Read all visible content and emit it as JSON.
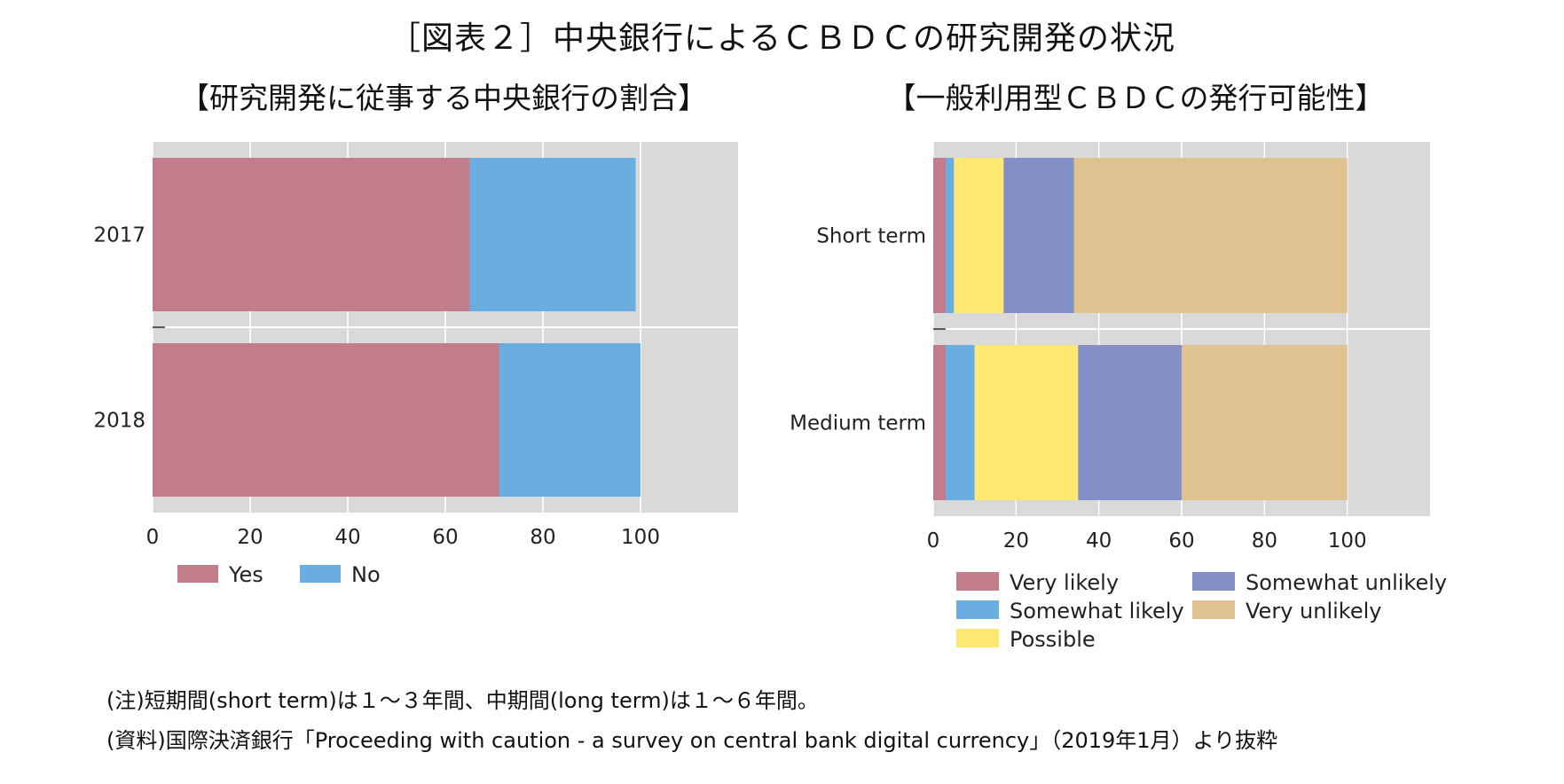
{
  "title": "［図表２］中央銀行によるＣＢＤＣの研究開発の状況",
  "chart_data": [
    {
      "type": "bar",
      "orientation": "horizontal",
      "stacked": true,
      "subtitle": "【研究開発に従事する中央銀行の割合】",
      "categories": [
        "2017",
        "2018"
      ],
      "series": [
        {
          "name": "Yes",
          "color": "#c17d8c",
          "values": [
            65,
            71
          ]
        },
        {
          "name": "No",
          "color": "#6aade0",
          "values": [
            34,
            29
          ]
        }
      ],
      "xlim": [
        0,
        120
      ],
      "xticks": [
        0,
        20,
        40,
        60,
        80,
        100
      ],
      "grid": true,
      "legend_position": "bottom"
    },
    {
      "type": "bar",
      "orientation": "horizontal",
      "stacked": true,
      "subtitle": "【一般利用型ＣＢＤＣの発行可能性】",
      "categories": [
        "Short term",
        "Medium term"
      ],
      "series": [
        {
          "name": "Very likely",
          "color": "#c17d8c",
          "values": [
            3,
            3
          ]
        },
        {
          "name": "Somewhat likely",
          "color": "#6aade0",
          "values": [
            2,
            7
          ]
        },
        {
          "name": "Possible",
          "color": "#fde972",
          "values": [
            12,
            25
          ]
        },
        {
          "name": "Somewhat unlikely",
          "color": "#838fc6",
          "values": [
            17,
            25
          ]
        },
        {
          "name": "Very unlikely",
          "color": "#e0c291",
          "values": [
            66,
            40
          ]
        }
      ],
      "xlim": [
        0,
        120
      ],
      "xticks": [
        0,
        20,
        40,
        60,
        80,
        100
      ],
      "grid": true,
      "legend_position": "bottom"
    }
  ],
  "notes": [
    "(注)短期間(short term)は１～３年間、中期間(long term)は１～６年間。",
    "(資料)国際決済銀行「Proceeding with caution - a survey on central bank digital currency」（2019年1月）より抜粋"
  ],
  "colors": {
    "panel_background": "#d9d9d9",
    "grid": "#ffffff"
  }
}
